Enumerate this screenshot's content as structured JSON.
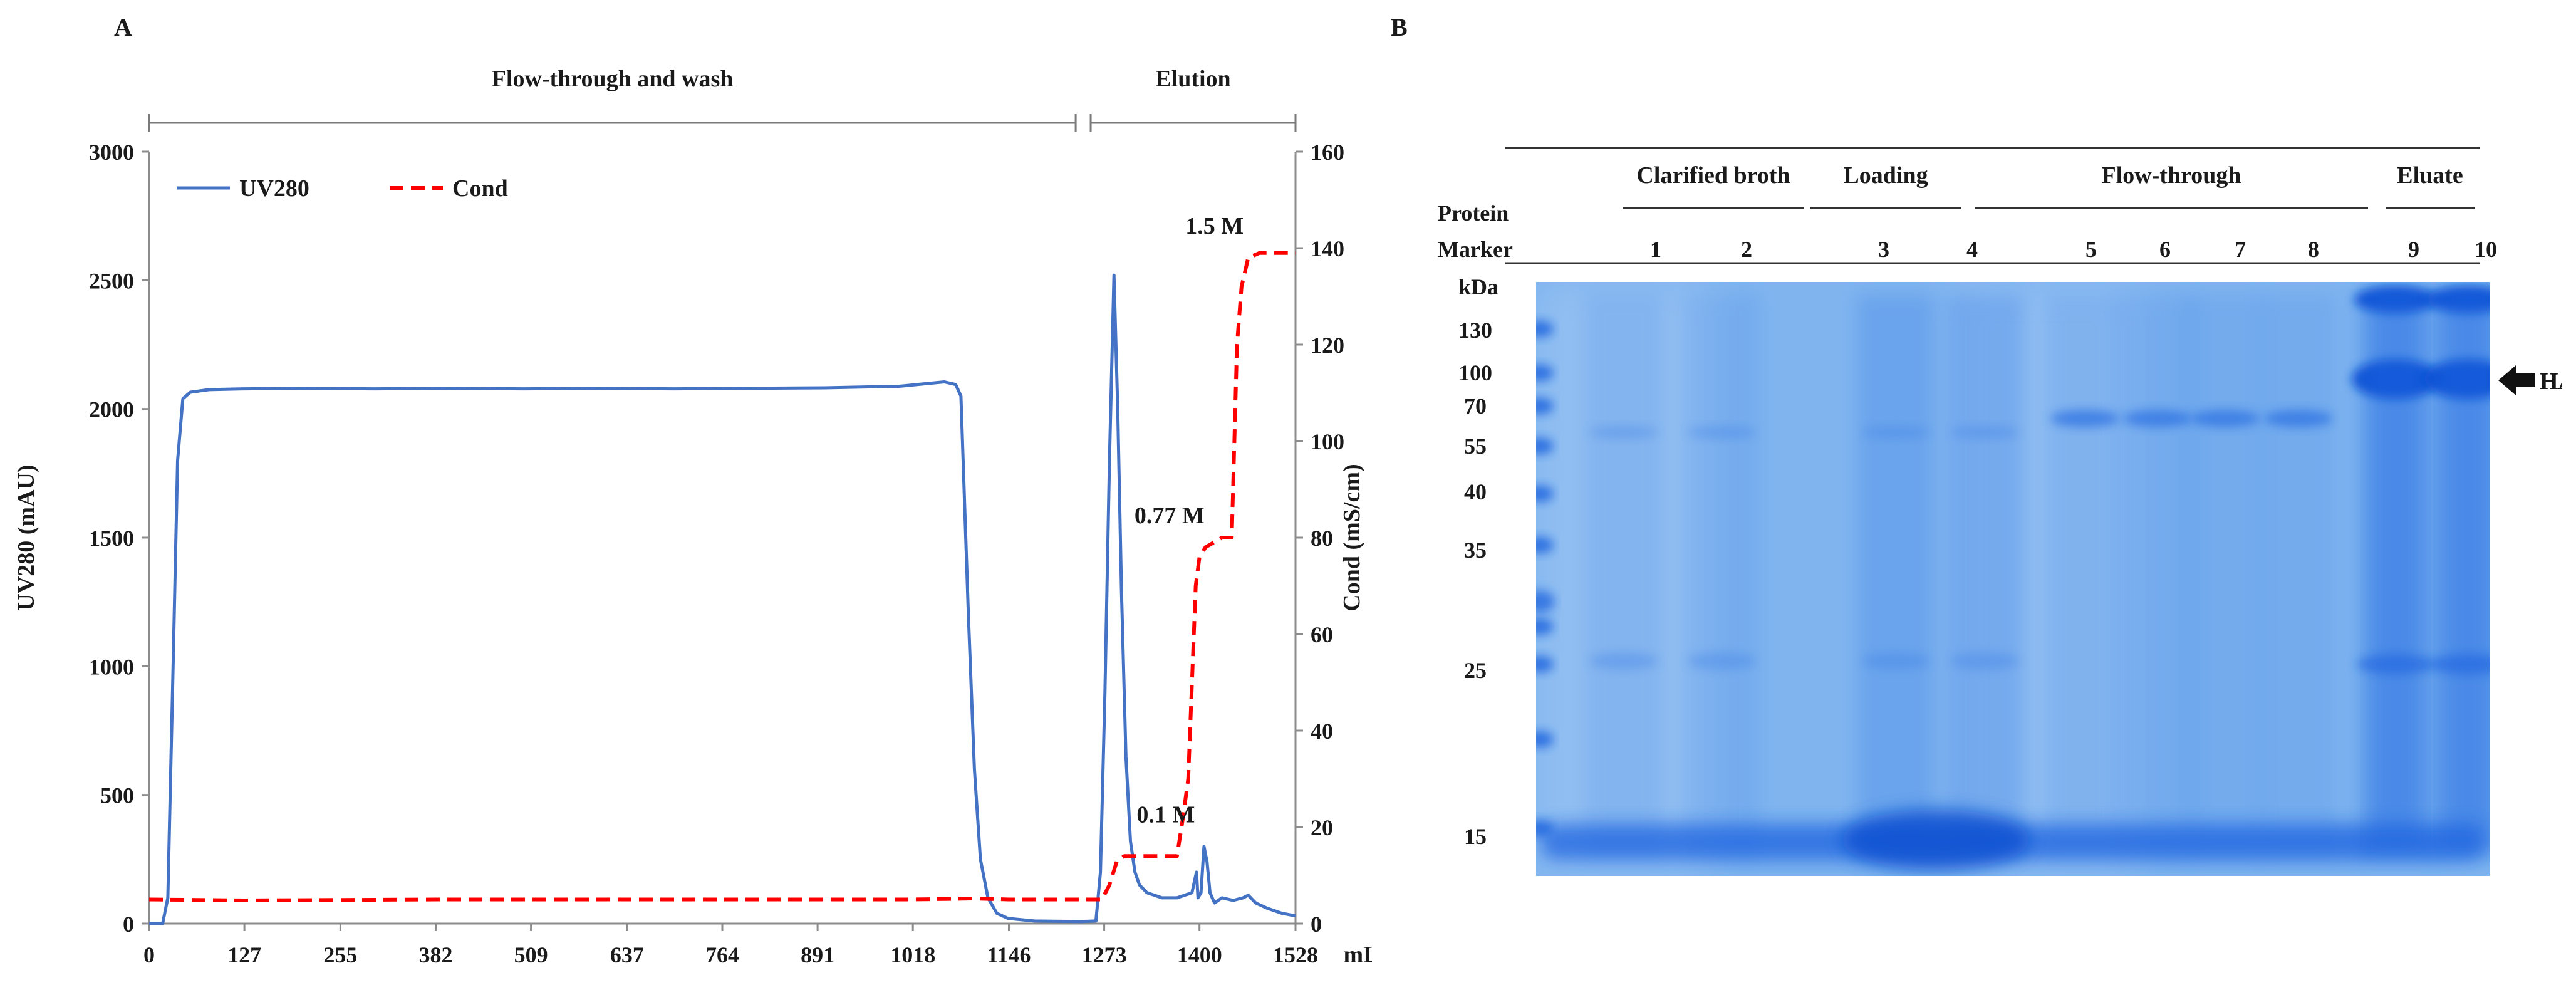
{
  "chart_data": [
    {
      "panel": "A",
      "type": "line",
      "title": "",
      "xlabel": "mL",
      "ylabel": "UV280 (mAU)",
      "y2label": "Cond (mS/cm)",
      "xlim": [
        0,
        1528
      ],
      "ylim": [
        0,
        3000
      ],
      "y2lim": [
        0,
        160
      ],
      "xticks": [
        0,
        127,
        255,
        382,
        509,
        637,
        764,
        891,
        1018,
        1146,
        1273,
        1400,
        1528
      ],
      "yticks": [
        0,
        500,
        1000,
        1500,
        2000,
        2500,
        3000
      ],
      "y2ticks": [
        0,
        20,
        40,
        60,
        80,
        100,
        120,
        140,
        160
      ],
      "legend_position": "top-left",
      "phases": [
        {
          "label": "Flow-through and wash",
          "range": [
            0,
            1235
          ]
        },
        {
          "label": "Elution",
          "range": [
            1255,
            1528
          ]
        }
      ],
      "annotations": [
        {
          "text": "1.5 M",
          "x": 1420,
          "y2": 143
        },
        {
          "text": "0.77 M",
          "x": 1360,
          "y2": 83
        },
        {
          "text": "0.1 M",
          "x": 1355,
          "y2": 21
        }
      ],
      "series": [
        {
          "name": "UV280",
          "axis": "left",
          "color": "#4472c4",
          "style": "solid",
          "points": [
            [
              0,
              0
            ],
            [
              18,
              0
            ],
            [
              25,
              100
            ],
            [
              32,
              1000
            ],
            [
              38,
              1800
            ],
            [
              45,
              2040
            ],
            [
              55,
              2065
            ],
            [
              80,
              2075
            ],
            [
              127,
              2078
            ],
            [
              200,
              2080
            ],
            [
              300,
              2078
            ],
            [
              400,
              2080
            ],
            [
              500,
              2078
            ],
            [
              600,
              2080
            ],
            [
              700,
              2078
            ],
            [
              800,
              2080
            ],
            [
              900,
              2082
            ],
            [
              1000,
              2088
            ],
            [
              1060,
              2105
            ],
            [
              1075,
              2095
            ],
            [
              1082,
              2050
            ],
            [
              1092,
              1200
            ],
            [
              1100,
              600
            ],
            [
              1108,
              250
            ],
            [
              1118,
              100
            ],
            [
              1130,
              40
            ],
            [
              1145,
              20
            ],
            [
              1180,
              10
            ],
            [
              1240,
              8
            ],
            [
              1262,
              10
            ],
            [
              1268,
              200
            ],
            [
              1274,
              900
            ],
            [
              1280,
              1800
            ],
            [
              1286,
              2520
            ],
            [
              1291,
              2000
            ],
            [
              1296,
              1300
            ],
            [
              1302,
              650
            ],
            [
              1308,
              320
            ],
            [
              1314,
              200
            ],
            [
              1320,
              150
            ],
            [
              1330,
              120
            ],
            [
              1350,
              100
            ],
            [
              1370,
              100
            ],
            [
              1390,
              120
            ],
            [
              1396,
              200
            ],
            [
              1398,
              100
            ],
            [
              1402,
              120
            ],
            [
              1406,
              300
            ],
            [
              1410,
              240
            ],
            [
              1414,
              120
            ],
            [
              1420,
              80
            ],
            [
              1430,
              100
            ],
            [
              1445,
              90
            ],
            [
              1458,
              100
            ],
            [
              1465,
              110
            ],
            [
              1475,
              80
            ],
            [
              1490,
              60
            ],
            [
              1510,
              40
            ],
            [
              1528,
              30
            ]
          ]
        },
        {
          "name": "Cond",
          "axis": "right",
          "color": "#ff0000",
          "style": "dashed",
          "points": [
            [
              0,
              5
            ],
            [
              127,
              4.8
            ],
            [
              382,
              5
            ],
            [
              637,
              5
            ],
            [
              891,
              5
            ],
            [
              1018,
              5
            ],
            [
              1100,
              5.2
            ],
            [
              1146,
              5
            ],
            [
              1270,
              5
            ],
            [
              1280,
              8
            ],
            [
              1290,
              13
            ],
            [
              1300,
              14
            ],
            [
              1370,
              14
            ],
            [
              1378,
              22
            ],
            [
              1385,
              30
            ],
            [
              1390,
              50
            ],
            [
              1395,
              70
            ],
            [
              1400,
              76
            ],
            [
              1408,
              78
            ],
            [
              1430,
              80
            ],
            [
              1443,
              80
            ],
            [
              1450,
              120
            ],
            [
              1456,
              132
            ],
            [
              1465,
              138
            ],
            [
              1480,
              139
            ],
            [
              1528,
              139
            ]
          ]
        }
      ]
    },
    {
      "panel": "B",
      "type": "gel",
      "ylabel": "kDa",
      "marker_labels": [
        "130",
        "100",
        "70",
        "55",
        "40",
        "35",
        "25",
        "15"
      ],
      "lane_header": [
        "Protein",
        "Marker"
      ],
      "lanes": [
        "1",
        "2",
        "3",
        "4",
        "5",
        "6",
        "7",
        "8",
        "9",
        "10"
      ],
      "lane_groups": [
        {
          "label": "Clarified broth",
          "lanes": [
            1,
            2
          ]
        },
        {
          "label": "Loading",
          "lanes": [
            3,
            4
          ]
        },
        {
          "label": "Flow-through",
          "lanes": [
            5,
            6,
            7,
            8
          ]
        },
        {
          "label": "Eluate",
          "lanes": [
            9,
            10
          ]
        }
      ],
      "band_annotation": {
        "text": "HA",
        "kda": "100"
      }
    }
  ],
  "panel_labels": {
    "a": "A",
    "b": "B"
  },
  "colors": {
    "uv": "#4472c4",
    "cond": "#ff0000",
    "gel_bg": "#7fb4ef",
    "gel_band": "#1a63e0"
  }
}
